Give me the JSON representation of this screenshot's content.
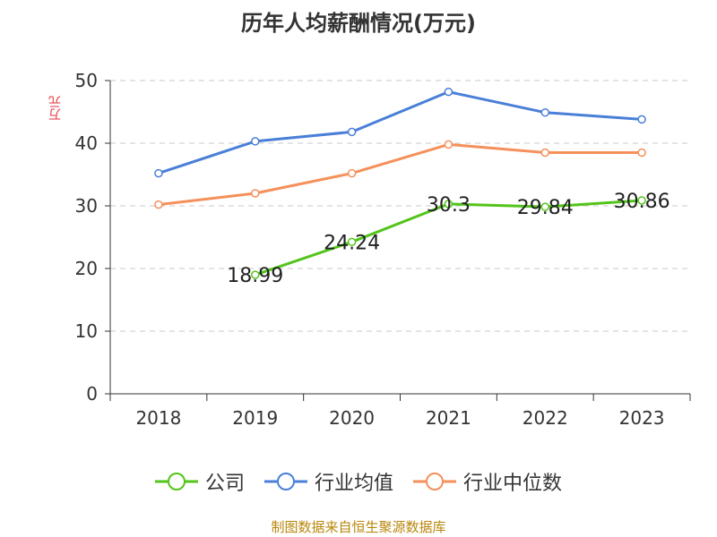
{
  "chart_data": {
    "type": "line",
    "title": "历年人均薪酬情况(万元)",
    "ylabel": "万元",
    "xlabel": "",
    "categories": [
      "2018",
      "2019",
      "2020",
      "2021",
      "2022",
      "2023"
    ],
    "ylim": [
      0,
      50
    ],
    "yticks": [
      0,
      10,
      20,
      30,
      40,
      50
    ],
    "grid": true,
    "legend_position": "bottom",
    "series": [
      {
        "name": "公司",
        "color": "#52c41a",
        "values": [
          null,
          18.99,
          24.24,
          30.3,
          29.84,
          30.86
        ],
        "labels": [
          "",
          "18.99",
          "24.24",
          "30.3",
          "29.84",
          "30.86"
        ]
      },
      {
        "name": "行业均值",
        "color": "#4a7fd8",
        "values": [
          35.2,
          40.3,
          41.8,
          48.2,
          44.9,
          43.8
        ]
      },
      {
        "name": "行业中位数",
        "color": "#f5905a",
        "values": [
          30.2,
          32.0,
          35.2,
          39.8,
          38.5,
          38.5
        ]
      }
    ]
  },
  "footer": {
    "source": "制图数据来自恒生聚源数据库"
  }
}
